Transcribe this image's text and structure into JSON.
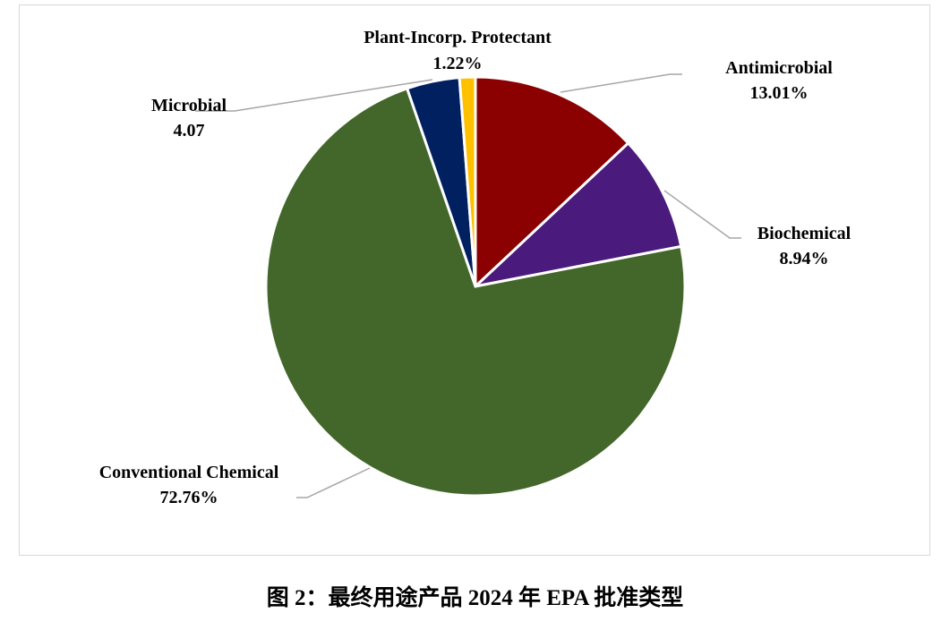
{
  "caption": "图 2：最终用途产品 2024 年 EPA 批准类型",
  "chart_data": {
    "type": "pie",
    "start_angle": "12 o'clock",
    "direction": "clockwise",
    "slices": [
      {
        "name": "Antimicrobial",
        "value": 13.01,
        "label": "13.01%",
        "color": "#8B0000"
      },
      {
        "name": "Biochemical",
        "value": 8.94,
        "label": "8.94%",
        "color": "#4B1A7D"
      },
      {
        "name": "Conventional Chemical",
        "value": 72.76,
        "label": "72.76%",
        "color": "#43672B"
      },
      {
        "name": "Microbial",
        "value": 4.07,
        "label": "4.07",
        "color": "#002060"
      },
      {
        "name": "Plant-Incorp. Protectant",
        "value": 1.22,
        "label": "1.22%",
        "color": "#FFC000"
      }
    ]
  }
}
